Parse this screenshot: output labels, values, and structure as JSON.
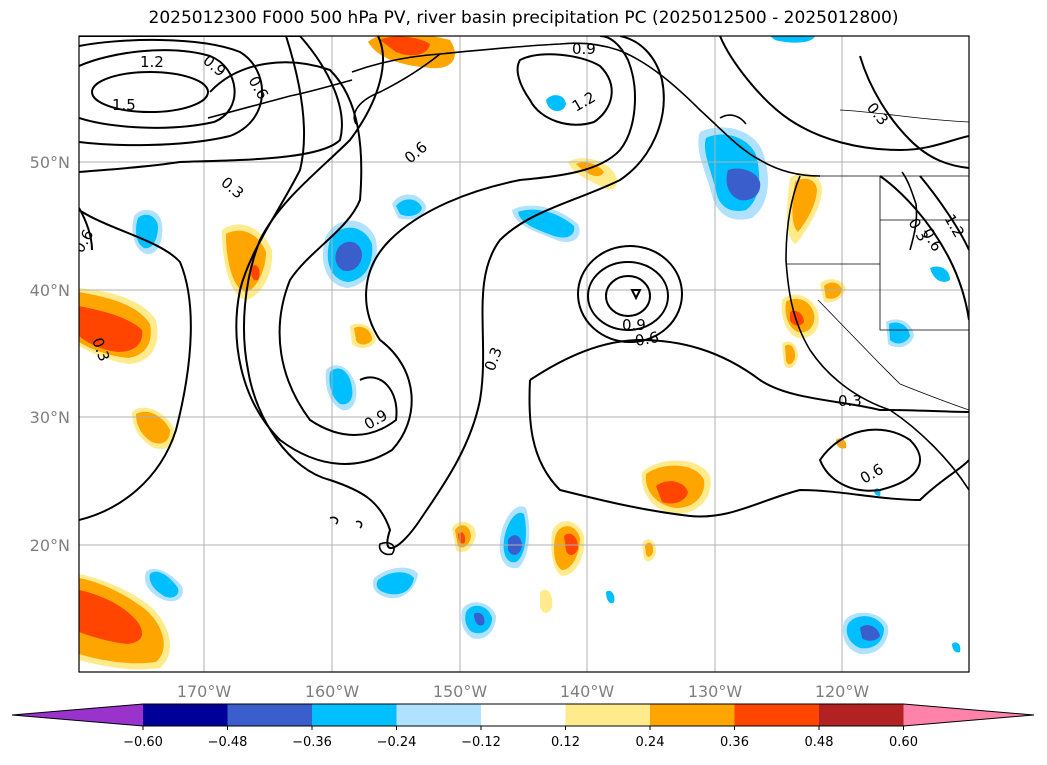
{
  "title": "2025012300 F000 500 hPa PV, river basin precipitation PC (2025012500 - 2025012800)",
  "map": {
    "lon_labels": [
      "170°W",
      "160°W",
      "150°W",
      "140°W",
      "130°W",
      "120°W"
    ],
    "lat_labels": [
      "50°N",
      "40°N",
      "30°N",
      "20°N"
    ],
    "gridlines": true,
    "contour_labels": [
      "1.2",
      "1.5",
      "0.9",
      "0.6",
      "0.3",
      "0.6",
      "0.3",
      "0.9",
      "1.2",
      "0.6",
      "0.3",
      "0.9",
      "0.6",
      "0.3",
      "0.9",
      "0.3",
      "0.6",
      "0.3",
      "0.6",
      "1.2"
    ]
  },
  "colorbar": {
    "ticks": [
      "−0.60",
      "−0.48",
      "−0.36",
      "−0.24",
      "−0.12",
      "0.12",
      "0.24",
      "0.36",
      "0.48",
      "0.60"
    ],
    "colors": [
      "#9933cc",
      "#000099",
      "#3a5fcd",
      "#00bfff",
      "#b0e2ff",
      "#ffffff",
      "#ffeb8c",
      "#ffa500",
      "#ff4500",
      "#b22222",
      "#ff82ab"
    ],
    "extend": "both"
  }
}
